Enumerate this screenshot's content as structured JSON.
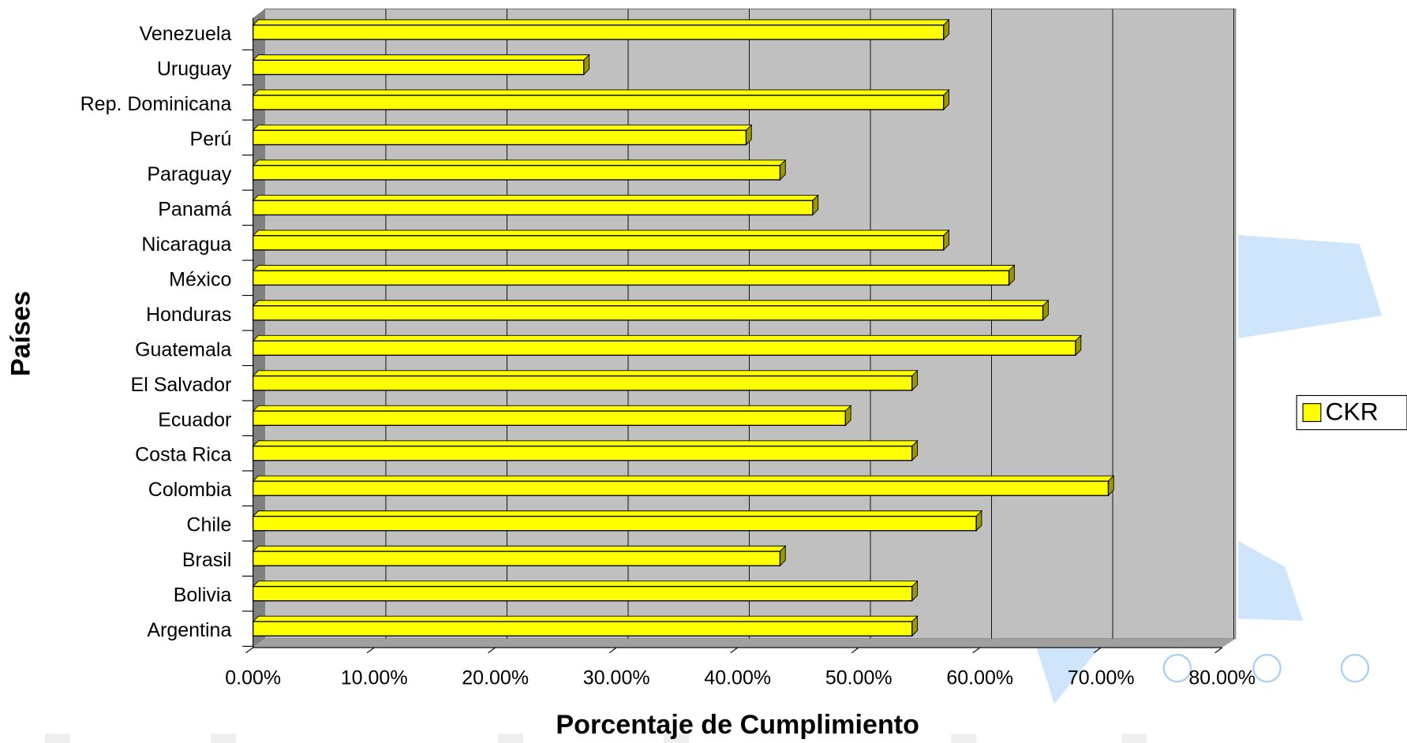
{
  "chart_data": {
    "type": "bar",
    "orientation": "horizontal",
    "x_label": "Porcentaje de Cumplimiento",
    "y_label": "Países",
    "categories": [
      "Argentina",
      "Bolivia",
      "Brasil",
      "Chile",
      "Colombia",
      "Costa Rica",
      "Ecuador",
      "El Salvador",
      "Guatemala",
      "Honduras",
      "México",
      "Nicaragua",
      "Panamá",
      "Paraguay",
      "Perú",
      "Rep. Dominicana",
      "Uruguay",
      "Venezuela"
    ],
    "series": [
      {
        "name": "CKR",
        "color": "#ffff00",
        "values": [
          54.4,
          54.4,
          43.5,
          59.7,
          70.6,
          54.4,
          48.9,
          54.4,
          67.9,
          65.2,
          62.4,
          57,
          46.2,
          43.5,
          40.7,
          57,
          27.3,
          57
        ]
      }
    ],
    "xlim": [
      0,
      80
    ],
    "xticks": [
      {
        "value": 0,
        "label": "0.00%"
      },
      {
        "value": 10,
        "label": "10.00%"
      },
      {
        "value": 20,
        "label": "20.00%"
      },
      {
        "value": 30,
        "label": "30.00%"
      },
      {
        "value": 40,
        "label": "40.00%"
      },
      {
        "value": 50,
        "label": "50.00%"
      },
      {
        "value": 60,
        "label": "60.00%"
      },
      {
        "value": 70,
        "label": "70.00%"
      },
      {
        "value": 80,
        "label": "80.00%"
      }
    ],
    "grid": true,
    "legend": "right"
  }
}
